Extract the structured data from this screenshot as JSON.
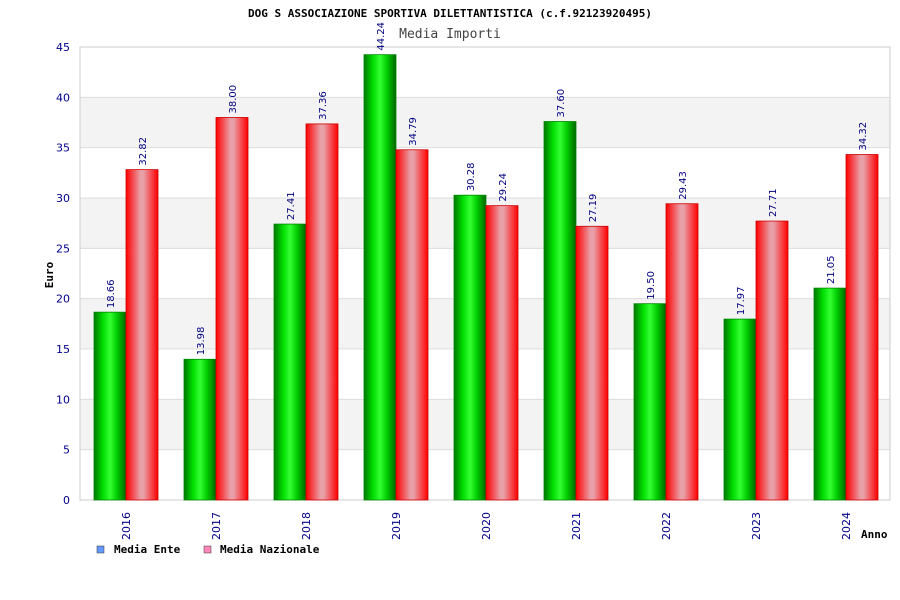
{
  "chart_data": {
    "type": "bar",
    "title": "DOG S ASSOCIAZIONE SPORTIVA DILETTANTISTICA (c.f.92123920495)",
    "subtitle": "Media Importi",
    "xlabel": "Anno",
    "ylabel": "Euro",
    "ylim": [
      0,
      45
    ],
    "yticks": [
      0,
      5,
      10,
      15,
      20,
      25,
      30,
      35,
      40,
      45
    ],
    "grid": "horizontal-banded",
    "legend": "bottom-left",
    "categories": [
      "2016",
      "2017",
      "2018",
      "2019",
      "2020",
      "2021",
      "2022",
      "2023",
      "2024"
    ],
    "series": [
      {
        "name": "Media Ente",
        "color": "#00aa00",
        "legend_color": "#6699ff",
        "values": [
          18.66,
          13.98,
          27.41,
          44.24,
          30.28,
          37.6,
          19.5,
          17.97,
          21.05
        ],
        "labels": [
          "18.66",
          "13.98",
          "27.41",
          "44.24",
          "30.28",
          "37.60",
          "19.50",
          "17.97",
          "21.05"
        ]
      },
      {
        "name": "Media Nazionale",
        "color": "#ff0000",
        "legend_color": "#ff88bb",
        "values": [
          32.82,
          38.0,
          37.36,
          34.79,
          29.24,
          27.19,
          29.43,
          27.71,
          34.32
        ],
        "labels": [
          "32.82",
          "38.00",
          "37.36",
          "34.79",
          "29.24",
          "27.19",
          "29.43",
          "27.71",
          "34.32"
        ]
      }
    ]
  }
}
